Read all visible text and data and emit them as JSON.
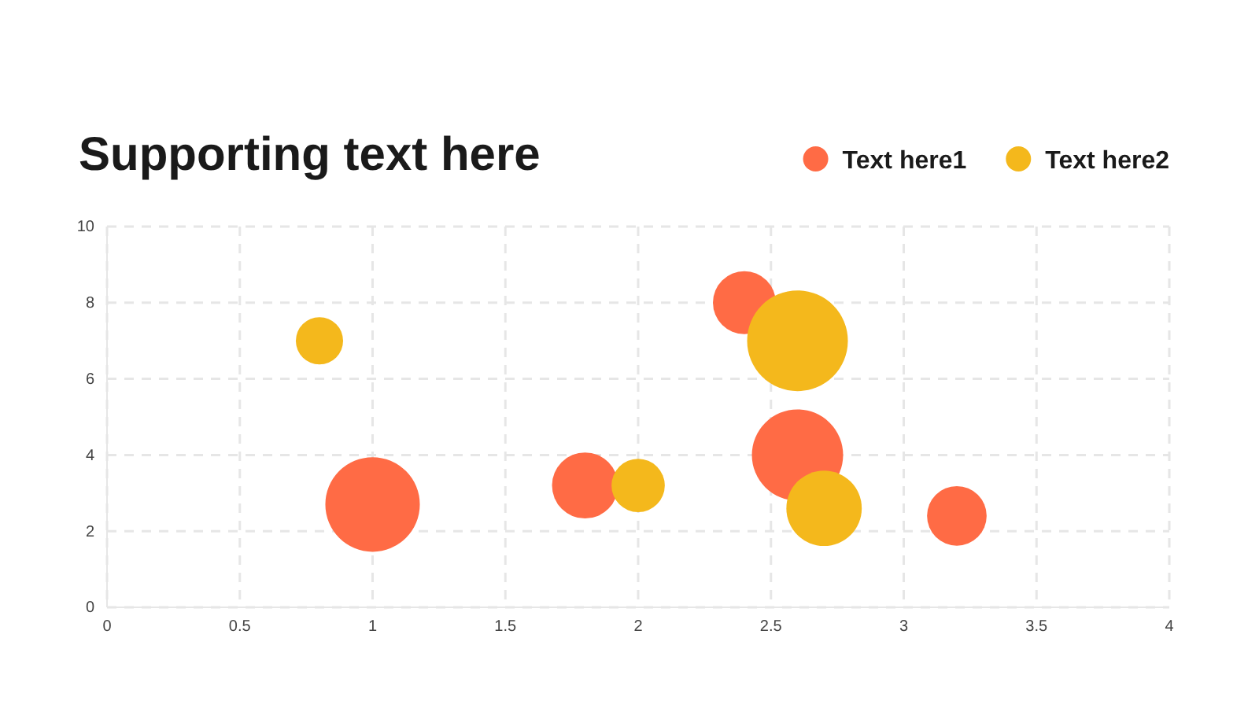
{
  "chart_data": {
    "type": "bubble",
    "title": "Supporting text here",
    "legend": "top right",
    "grid": true,
    "marker": "circle",
    "line_style": "dashed",
    "xlim": [
      0,
      4
    ],
    "xticks": [
      0,
      0.5,
      1,
      1.5,
      2,
      2.5,
      3,
      3.5,
      4
    ],
    "ylim": [
      0,
      10
    ],
    "yticks": [
      0,
      2,
      4,
      6,
      8,
      10
    ],
    "series": [
      {
        "name": "Text here1",
        "color": "#ff6b45",
        "x": [
          1,
          1.8,
          2.4,
          2.6,
          3.2
        ],
        "values": [
          2.7,
          3.2,
          8,
          4,
          2.4
        ],
        "sizes": [
          0.88,
          0.43,
          0.39,
          0.82,
          0.35
        ]
      },
      {
        "name": "Text here2",
        "color": "#f4b81c",
        "x": [
          0.8,
          2,
          2.6,
          2.7
        ],
        "values": [
          7,
          3.2,
          7,
          2.6
        ],
        "sizes": [
          0.22,
          0.28,
          1,
          0.56
        ]
      }
    ]
  }
}
